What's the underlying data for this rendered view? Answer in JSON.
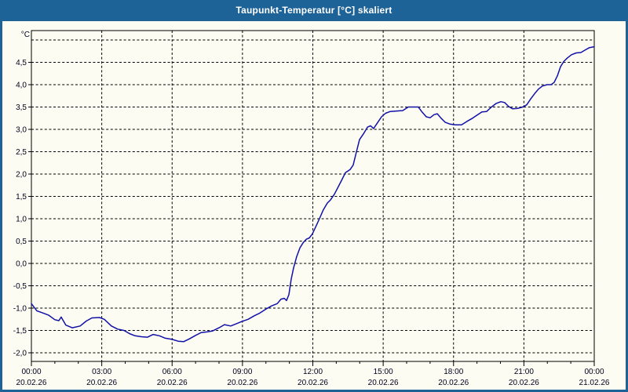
{
  "window": {
    "title": "Taupunkt-Temperatur [°C] skaliert"
  },
  "chart_data": {
    "type": "line",
    "title": "Taupunkt-Temperatur [°C] skaliert",
    "xlabel": "",
    "ylabel": "°C",
    "x_unit": "hours_since_midnight",
    "xlim": [
      0,
      24
    ],
    "ylim": [
      -2.2,
      5.2
    ],
    "grid": "dashed",
    "legend_position": "none",
    "line_color": "#1111a7",
    "frame_color": "#000000",
    "text_color": "#00001e",
    "y_ticks": [
      {
        "value": 5.0,
        "label": ""
      },
      {
        "value": 4.5,
        "label": "4,5"
      },
      {
        "value": 4.0,
        "label": "4,0"
      },
      {
        "value": 3.5,
        "label": "3,5"
      },
      {
        "value": 3.0,
        "label": "3,0"
      },
      {
        "value": 2.5,
        "label": "2,5"
      },
      {
        "value": 2.0,
        "label": "2,0"
      },
      {
        "value": 1.5,
        "label": "1,5"
      },
      {
        "value": 1.0,
        "label": "1,0"
      },
      {
        "value": 0.5,
        "label": "0,5"
      },
      {
        "value": 0.0,
        "label": "0,0"
      },
      {
        "value": -0.5,
        "label": "-0,5"
      },
      {
        "value": -1.0,
        "label": "-1,0"
      },
      {
        "value": -1.5,
        "label": "-1,5"
      },
      {
        "value": -2.0,
        "label": "-2,0"
      }
    ],
    "x_ticks": [
      {
        "hour": 0,
        "time": "00:00",
        "date": "20.02.26"
      },
      {
        "hour": 3,
        "time": "03:00",
        "date": "20.02.26"
      },
      {
        "hour": 6,
        "time": "06:00",
        "date": "20.02.26"
      },
      {
        "hour": 9,
        "time": "09:00",
        "date": "20.02.26"
      },
      {
        "hour": 12,
        "time": "12:00",
        "date": "20.02.26"
      },
      {
        "hour": 15,
        "time": "15:00",
        "date": "20.02.26"
      },
      {
        "hour": 18,
        "time": "18:00",
        "date": "20.02.26"
      },
      {
        "hour": 21,
        "time": "21:00",
        "date": "20.02.26"
      },
      {
        "hour": 24,
        "time": "00:00",
        "date": "21.02.26"
      }
    ],
    "x_minor_tick_every_hours": 1,
    "series": [
      {
        "name": "Taupunkt-Temperatur",
        "points": [
          [
            0.0,
            -0.9
          ],
          [
            0.23,
            -1.06
          ],
          [
            0.5,
            -1.11
          ],
          [
            0.74,
            -1.16
          ],
          [
            1.0,
            -1.26
          ],
          [
            1.17,
            -1.28
          ],
          [
            1.27,
            -1.2
          ],
          [
            1.47,
            -1.38
          ],
          [
            1.74,
            -1.44
          ],
          [
            2.08,
            -1.4
          ],
          [
            2.34,
            -1.29
          ],
          [
            2.58,
            -1.22
          ],
          [
            2.91,
            -1.21
          ],
          [
            3.11,
            -1.25
          ],
          [
            3.41,
            -1.4
          ],
          [
            3.68,
            -1.47
          ],
          [
            3.95,
            -1.5
          ],
          [
            4.18,
            -1.57
          ],
          [
            4.42,
            -1.62
          ],
          [
            4.69,
            -1.64
          ],
          [
            4.95,
            -1.65
          ],
          [
            5.19,
            -1.59
          ],
          [
            5.46,
            -1.62
          ],
          [
            5.69,
            -1.67
          ],
          [
            6.0,
            -1.7
          ],
          [
            6.26,
            -1.74
          ],
          [
            6.49,
            -1.75
          ],
          [
            6.73,
            -1.69
          ],
          [
            7.0,
            -1.61
          ],
          [
            7.23,
            -1.55
          ],
          [
            7.5,
            -1.53
          ],
          [
            7.73,
            -1.51
          ],
          [
            8.0,
            -1.44
          ],
          [
            8.23,
            -1.37
          ],
          [
            8.5,
            -1.4
          ],
          [
            8.74,
            -1.35
          ],
          [
            8.97,
            -1.3
          ],
          [
            9.24,
            -1.25
          ],
          [
            9.51,
            -1.17
          ],
          [
            9.74,
            -1.11
          ],
          [
            10.01,
            -1.02
          ],
          [
            10.24,
            -0.95
          ],
          [
            10.48,
            -0.9
          ],
          [
            10.64,
            -0.8
          ],
          [
            10.78,
            -0.78
          ],
          [
            10.88,
            -0.83
          ],
          [
            10.98,
            -0.7
          ],
          [
            11.08,
            -0.35
          ],
          [
            11.18,
            -0.1
          ],
          [
            11.31,
            0.15
          ],
          [
            11.45,
            0.35
          ],
          [
            11.58,
            0.46
          ],
          [
            11.72,
            0.54
          ],
          [
            11.85,
            0.57
          ],
          [
            11.98,
            0.66
          ],
          [
            12.15,
            0.85
          ],
          [
            12.28,
            1.0
          ],
          [
            12.45,
            1.2
          ],
          [
            12.62,
            1.35
          ],
          [
            12.75,
            1.42
          ],
          [
            12.92,
            1.55
          ],
          [
            13.05,
            1.68
          ],
          [
            13.22,
            1.85
          ],
          [
            13.39,
            2.03
          ],
          [
            13.59,
            2.1
          ],
          [
            13.72,
            2.2
          ],
          [
            13.86,
            2.5
          ],
          [
            13.99,
            2.77
          ],
          [
            14.16,
            2.9
          ],
          [
            14.33,
            3.05
          ],
          [
            14.46,
            3.08
          ],
          [
            14.59,
            3.02
          ],
          [
            14.76,
            3.15
          ],
          [
            14.93,
            3.28
          ],
          [
            15.1,
            3.36
          ],
          [
            15.3,
            3.4
          ],
          [
            15.56,
            3.41
          ],
          [
            15.83,
            3.42
          ],
          [
            16.07,
            3.5
          ],
          [
            16.33,
            3.5
          ],
          [
            16.5,
            3.5
          ],
          [
            16.67,
            3.38
          ],
          [
            16.84,
            3.28
          ],
          [
            17.0,
            3.26
          ],
          [
            17.17,
            3.33
          ],
          [
            17.31,
            3.35
          ],
          [
            17.47,
            3.25
          ],
          [
            17.64,
            3.16
          ],
          [
            17.84,
            3.12
          ],
          [
            18.08,
            3.1
          ],
          [
            18.34,
            3.1
          ],
          [
            18.58,
            3.18
          ],
          [
            18.81,
            3.25
          ],
          [
            19.01,
            3.32
          ],
          [
            19.21,
            3.39
          ],
          [
            19.41,
            3.4
          ],
          [
            19.62,
            3.5
          ],
          [
            19.82,
            3.58
          ],
          [
            20.02,
            3.62
          ],
          [
            20.18,
            3.6
          ],
          [
            20.35,
            3.51
          ],
          [
            20.52,
            3.46
          ],
          [
            20.75,
            3.47
          ],
          [
            20.95,
            3.5
          ],
          [
            21.12,
            3.55
          ],
          [
            21.29,
            3.68
          ],
          [
            21.46,
            3.8
          ],
          [
            21.62,
            3.9
          ],
          [
            21.79,
            3.97
          ],
          [
            21.99,
            4.0
          ],
          [
            22.16,
            4.0
          ],
          [
            22.29,
            4.05
          ],
          [
            22.43,
            4.2
          ],
          [
            22.56,
            4.4
          ],
          [
            22.7,
            4.52
          ],
          [
            22.86,
            4.6
          ],
          [
            23.03,
            4.67
          ],
          [
            23.23,
            4.71
          ],
          [
            23.43,
            4.72
          ],
          [
            23.63,
            4.78
          ],
          [
            23.8,
            4.83
          ],
          [
            24.0,
            4.85
          ]
        ]
      }
    ]
  },
  "colors": {
    "titlebar_bg": "#1e6397",
    "panel_bg": "#fcfcf2",
    "title_text": "#ffffff"
  }
}
